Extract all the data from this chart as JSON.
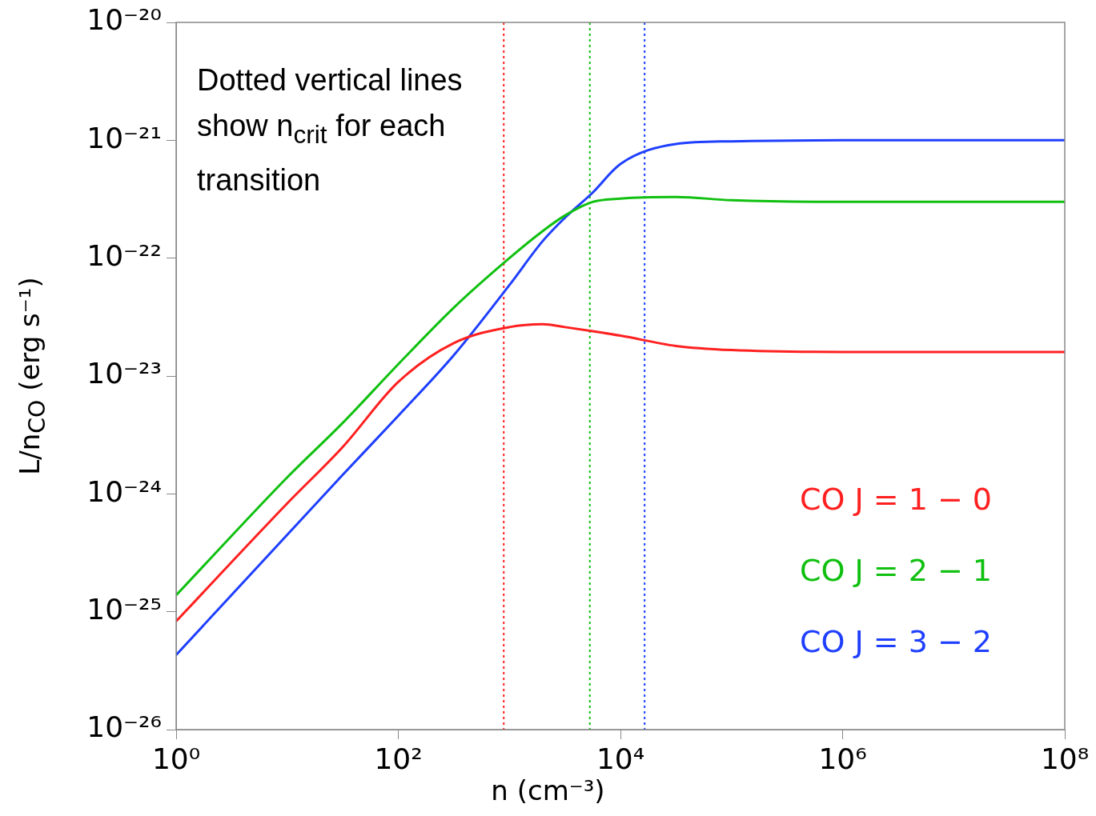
{
  "chart_data": {
    "type": "line",
    "xlabel": "n (cm⁻³)",
    "ylabel": "L/n$_{CO}$ (erg s⁻¹)",
    "annotations": [
      "Dotted vertical lines show n$_{crit}$ for each transition"
    ],
    "log": "xy",
    "grid": false,
    "legend": "bottom right",
    "marker": "none",
    "line_style": "solid",
    "x": [
      1,
      10,
      31.6,
      100,
      316,
      1000,
      2000,
      3162,
      5623,
      10000,
      31623,
      100000,
      1000000,
      10000000,
      100000000
    ],
    "series": [
      {
        "name": "CO J = 1 − 0",
        "color": "#ff2020",
        "values": [
          8.3e-26,
          8.3e-25,
          2.5e-24,
          8.9e-24,
          1.9e-23,
          2.6e-23,
          2.75e-23,
          2.6e-23,
          2.4e-23,
          2.2e-23,
          1.8e-23,
          1.66e-23,
          1.6e-23,
          1.6e-23,
          1.6e-23
        ]
      },
      {
        "name": "CO J = 2 − 1",
        "color": "#10c010",
        "values": [
          1.38e-25,
          1.38e-24,
          4e-24,
          1.26e-23,
          3.8e-23,
          1e-22,
          1.7e-22,
          2.3e-22,
          3e-22,
          3.2e-22,
          3.3e-22,
          3.1e-22,
          3e-22,
          3e-22,
          3e-22
        ]
      },
      {
        "name": "CO J = 3 − 2",
        "color": "#1f3fff",
        "values": [
          4.3e-26,
          4.5e-25,
          1.45e-24,
          4.6e-24,
          1.5e-23,
          5.9e-23,
          1.4e-22,
          2.2e-22,
          3.6e-22,
          6.3e-22,
          9.3e-22,
          9.8e-22,
          1e-21,
          1e-21,
          1e-21
        ]
      }
    ],
    "ref_lines": [
      {
        "axis": "x",
        "value": 890,
        "color": "#ff2020",
        "line_style": "dotted"
      },
      {
        "axis": "x",
        "value": 5300,
        "color": "#10c010",
        "line_style": "dotted"
      },
      {
        "axis": "x",
        "value": 16500,
        "color": "#1f3fff",
        "line_style": "dotted"
      }
    ],
    "xlim": [
      1,
      100000000
    ],
    "xticks": [
      {
        "value": 1,
        "label": "10⁰"
      },
      {
        "value": 100,
        "label": "10²"
      },
      {
        "value": 10000,
        "label": "10⁴"
      },
      {
        "value": 1000000,
        "label": "10⁶"
      },
      {
        "value": 100000000,
        "label": "10⁸"
      }
    ],
    "ylim": [
      1e-26,
      1e-20
    ],
    "yticks": [
      {
        "value": 1e-26,
        "label": "10⁻²⁶"
      },
      {
        "value": 1e-25,
        "label": "10⁻²⁵"
      },
      {
        "value": 1e-24,
        "label": "10⁻²⁴"
      },
      {
        "value": 1e-23,
        "label": "10⁻²³"
      },
      {
        "value": 1e-22,
        "label": "10⁻²²"
      },
      {
        "value": 1e-21,
        "label": "10⁻²¹"
      },
      {
        "value": 1e-20,
        "label": "10⁻²⁰"
      }
    ]
  }
}
